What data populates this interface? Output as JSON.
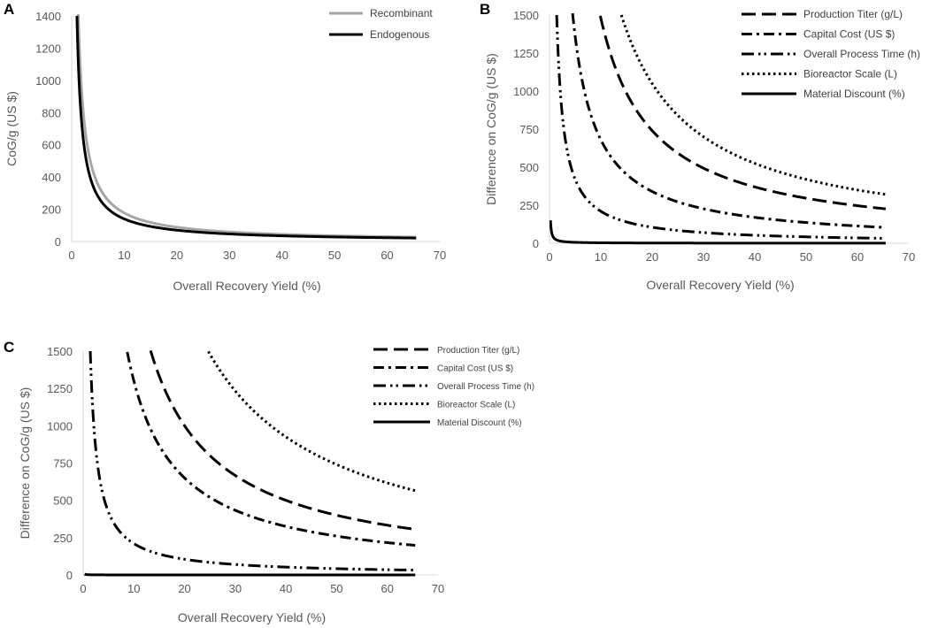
{
  "chart_data": [
    {
      "panel": "A",
      "type": "line",
      "xlabel": "Overall Recovery Yield (%)",
      "ylabel": "CoG/g (US $)",
      "xlim": [
        0,
        70
      ],
      "ylim": [
        0,
        1400
      ],
      "xticks": [
        0,
        10,
        20,
        30,
        40,
        50,
        60,
        70
      ],
      "yticks": [
        0,
        200,
        400,
        600,
        800,
        1000,
        1200,
        1400
      ],
      "legend_position": "top-right",
      "series": [
        {
          "name": "Recombinant",
          "color": "#a6a6a6",
          "dash": "solid",
          "k": 1770,
          "x": [
            1,
            2,
            3,
            5,
            10,
            20,
            30,
            40,
            50,
            60,
            65.5
          ],
          "y": [
            1770,
            885,
            590,
            354,
            177,
            88.5,
            59,
            44.3,
            35.4,
            29.5,
            27
          ]
        },
        {
          "name": "Endogenous",
          "color": "#000000",
          "dash": "solid",
          "k": 1400,
          "x": [
            1,
            2,
            3,
            5,
            10,
            20,
            30,
            40,
            50,
            60,
            65.5
          ],
          "y": [
            1400,
            700,
            467,
            280,
            140,
            70,
            46.7,
            35,
            28,
            23.3,
            21.4
          ]
        }
      ]
    },
    {
      "panel": "B",
      "type": "line",
      "xlabel": "Overall Recovery Yield (%)",
      "ylabel": "Difference on CoG/g (US $)",
      "xlim": [
        0,
        70
      ],
      "ylim": [
        0,
        1500
      ],
      "xticks": [
        0,
        10,
        20,
        30,
        40,
        50,
        60,
        70
      ],
      "yticks": [
        0,
        250,
        500,
        750,
        1000,
        1250,
        1500
      ],
      "legend_position": "top-right",
      "series": [
        {
          "name": "Production Titer (g/L)",
          "dash": "long-dash",
          "k": 14800,
          "x": [
            9.9,
            20,
            30,
            40,
            50,
            60,
            65.5
          ],
          "y": [
            1500,
            740,
            493,
            370,
            296,
            247,
            226
          ]
        },
        {
          "name": "Capital Cost (US $)",
          "dash": "dash-dot",
          "k": 6800,
          "x": [
            4.5,
            10,
            20,
            30,
            40,
            50,
            60,
            65.5
          ],
          "y": [
            1500,
            680,
            340,
            227,
            170,
            136,
            113,
            104
          ]
        },
        {
          "name": "Overall Process Time (h)",
          "dash": "dash-dot-dot",
          "k": 2100,
          "x": [
            1.4,
            5,
            10,
            20,
            30,
            40,
            50,
            60,
            65.5
          ],
          "y": [
            1500,
            420,
            210,
            105,
            70,
            52.5,
            42,
            35,
            32
          ]
        },
        {
          "name": "Bioreactor Scale (L)",
          "dash": "dotted",
          "k": 21000,
          "x": [
            14,
            20,
            30,
            40,
            50,
            60,
            65.5
          ],
          "y": [
            1500,
            1050,
            700,
            525,
            420,
            350,
            321
          ]
        },
        {
          "name": "Material Discount (%)",
          "dash": "solid",
          "k": 30,
          "x": [
            0.2,
            0.5,
            1,
            2,
            5,
            10,
            30,
            65.5
          ],
          "y": [
            1500,
            60,
            30,
            15,
            6,
            3,
            1,
            0.5
          ]
        }
      ]
    },
    {
      "panel": "C",
      "type": "line",
      "xlabel": "Overall Recovery Yield (%)",
      "ylabel": "Difference on CoG/g (US $)",
      "xlim": [
        0,
        70
      ],
      "ylim": [
        0,
        1500
      ],
      "xticks": [
        0,
        10,
        20,
        30,
        40,
        50,
        60,
        70
      ],
      "yticks": [
        0,
        250,
        500,
        750,
        1000,
        1250,
        1500
      ],
      "legend_position": "top-right",
      "series": [
        {
          "name": "Production Titer (g/L)",
          "dash": "long-dash",
          "k": 20000,
          "x": [
            13.3,
            20,
            30,
            40,
            50,
            60,
            65.5
          ],
          "y": [
            1500,
            1000,
            667,
            500,
            400,
            333,
            305
          ]
        },
        {
          "name": "Capital Cost (US $)",
          "dash": "dash-dot",
          "k": 13000,
          "x": [
            8.7,
            10,
            20,
            30,
            40,
            50,
            60,
            65.5
          ],
          "y": [
            1500,
            1300,
            650,
            433,
            325,
            260,
            217,
            198
          ]
        },
        {
          "name": "Overall Process Time (h)",
          "dash": "dash-dot-dot",
          "k": 2100,
          "x": [
            1.4,
            5,
            10,
            20,
            30,
            40,
            50,
            60,
            65.5
          ],
          "y": [
            1500,
            420,
            210,
            105,
            70,
            52.5,
            42,
            35,
            32
          ]
        },
        {
          "name": "Bioreactor Scale (L)",
          "dash": "dotted",
          "k": 37000,
          "x": [
            24.7,
            30,
            40,
            50,
            60,
            65.5
          ],
          "y": [
            1500,
            1233,
            925,
            740,
            617,
            565
          ]
        },
        {
          "name": "Material Discount (%)",
          "dash": "solid",
          "k": 1.6,
          "x": [
            0.3,
            1,
            2,
            5,
            10,
            30,
            65.5
          ],
          "y": [
            270,
            1.6,
            0.8,
            0.3,
            0.2,
            0.1,
            0.02
          ]
        }
      ]
    }
  ]
}
